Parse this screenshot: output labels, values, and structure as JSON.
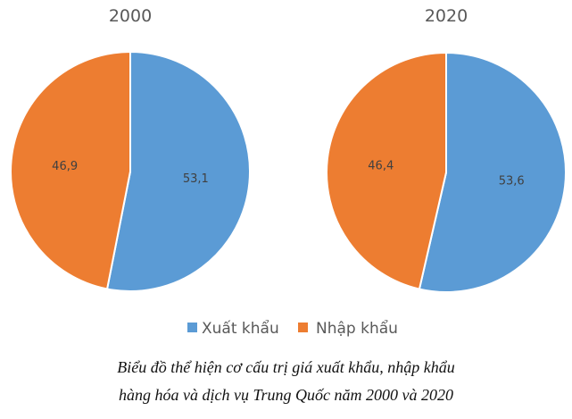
{
  "chart_data": {
    "type": "pie",
    "legend": [
      "Xuất khẩu",
      "Nhập khẩu"
    ],
    "legend_placement": "bottom",
    "colors": [
      "#5B9BD5",
      "#ED7D31"
    ],
    "charts": [
      {
        "title": "2000",
        "values": [
          53.1,
          46.9
        ],
        "labels": [
          "53,1",
          "46,9"
        ]
      },
      {
        "title": "2020",
        "values": [
          53.6,
          46.4
        ],
        "labels": [
          "53,6",
          "46,4"
        ]
      }
    ]
  },
  "caption": {
    "line1": "Biểu đồ thể hiện cơ cấu trị giá xuất khẩu, nhập khẩu",
    "line2": "hàng hóa và dịch vụ Trung Quốc năm 2000 và 2020"
  }
}
